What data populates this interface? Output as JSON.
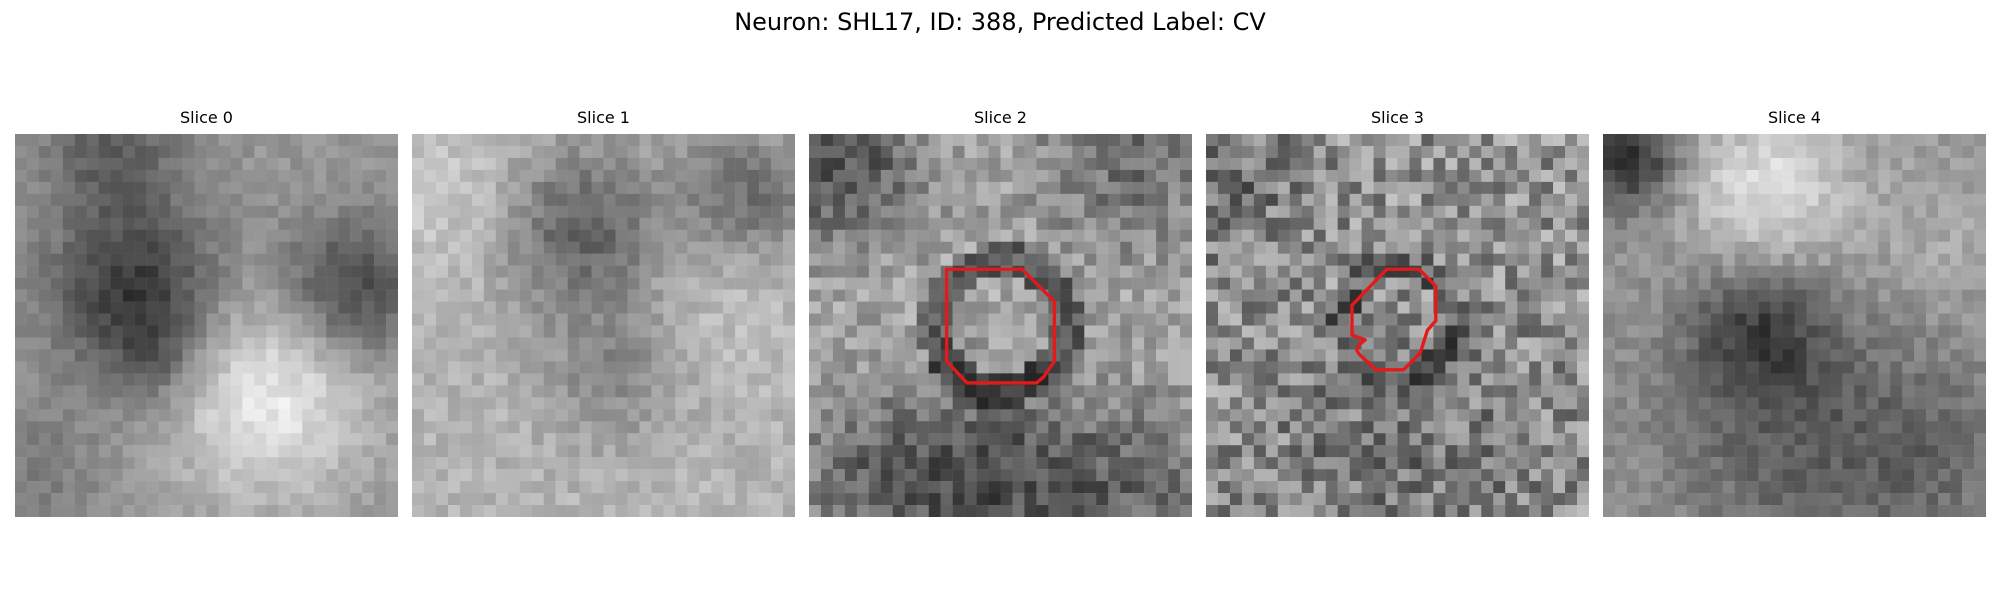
{
  "figure": {
    "title": "Neuron: SHL17, ID: 388, Predicted Label: CV"
  },
  "panels": [
    {
      "title": "Slice 0",
      "contour": false
    },
    {
      "title": "Slice 1",
      "contour": false
    },
    {
      "title": "Slice 2",
      "contour": true
    },
    {
      "title": "Slice 3",
      "contour": true
    },
    {
      "title": "Slice 4",
      "contour": false
    }
  ],
  "style": {
    "contour_color": "#e31a1c",
    "colormap": "gray"
  }
}
